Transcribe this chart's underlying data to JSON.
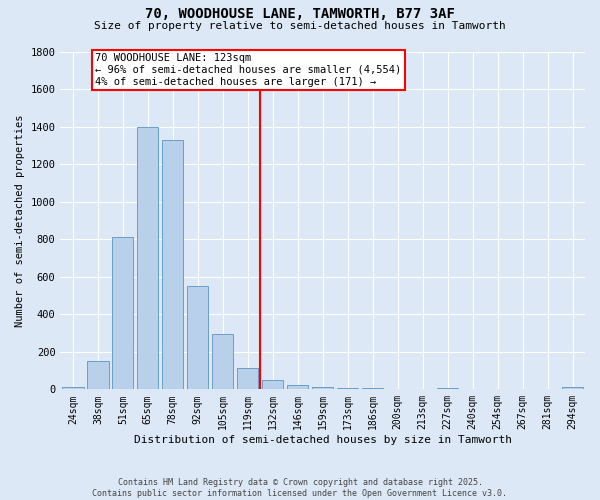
{
  "title": "70, WOODHOUSE LANE, TAMWORTH, B77 3AF",
  "subtitle": "Size of property relative to semi-detached houses in Tamworth",
  "xlabel": "Distribution of semi-detached houses by size in Tamworth",
  "ylabel": "Number of semi-detached properties",
  "categories": [
    "24sqm",
    "38sqm",
    "51sqm",
    "65sqm",
    "78sqm",
    "92sqm",
    "105sqm",
    "119sqm",
    "132sqm",
    "146sqm",
    "159sqm",
    "173sqm",
    "186sqm",
    "200sqm",
    "213sqm",
    "227sqm",
    "240sqm",
    "254sqm",
    "267sqm",
    "281sqm",
    "294sqm"
  ],
  "values": [
    15,
    150,
    810,
    1400,
    1330,
    550,
    295,
    115,
    50,
    25,
    10,
    5,
    5,
    0,
    0,
    5,
    0,
    0,
    0,
    0,
    10
  ],
  "bar_color": "#b8d0ea",
  "bar_edge_color": "#6b9ec8",
  "annotation_line1": "70 WOODHOUSE LANE: 123sqm",
  "annotation_line2": "← 96% of semi-detached houses are smaller (4,554)",
  "annotation_line3": "4% of semi-detached houses are larger (171) →",
  "vline_index": 7.5,
  "ylim": [
    0,
    1800
  ],
  "yticks": [
    0,
    200,
    400,
    600,
    800,
    1000,
    1200,
    1400,
    1600,
    1800
  ],
  "background_color": "#dce8f5",
  "grid_color": "#ffffff",
  "footer_line1": "Contains HM Land Registry data © Crown copyright and database right 2025.",
  "footer_line2": "Contains public sector information licensed under the Open Government Licence v3.0.",
  "title_fontsize": 10,
  "subtitle_fontsize": 8,
  "axis_label_fontsize": 7.5,
  "tick_fontsize": 7,
  "footer_fontsize": 6,
  "annotation_fontsize": 7.5
}
